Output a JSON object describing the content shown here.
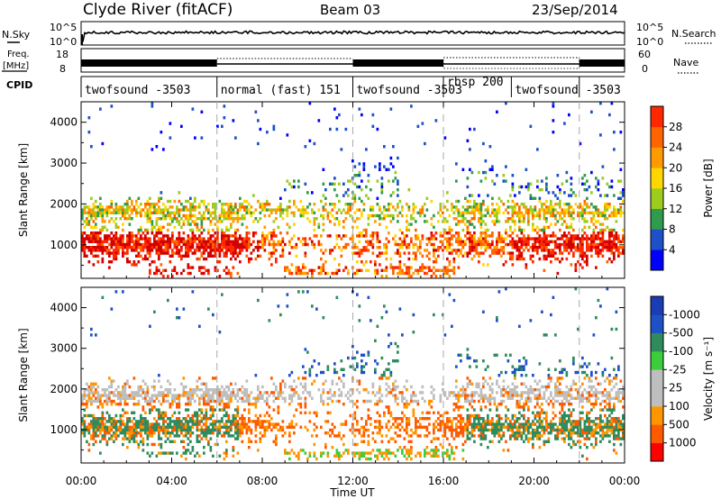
{
  "header": {
    "station": "Clyde River (fitACF)",
    "beam": "Beam 03",
    "date": "23/Sep/2014"
  },
  "top_panels": {
    "nsky_label": "N.Sky",
    "nsearch_label": "N.Search",
    "freq_label_1": "Freq.",
    "freq_label_2": "[MHz]",
    "nave_label": "Nave",
    "cpid_label": "CPID",
    "left_ticks_noise": [
      "10^5",
      "10^0"
    ],
    "right_ticks_noise": [
      "10^5",
      "10^0"
    ],
    "left_ticks_freq": [
      "18",
      "8"
    ],
    "right_ticks_nave": [
      "60",
      "0"
    ]
  },
  "cpid_segments": [
    {
      "label": "twofsound -3503",
      "start": 0,
      "end": 6
    },
    {
      "label": "normal (fast) 151",
      "start": 6,
      "end": 12
    },
    {
      "label": "twofsound -3503",
      "start": 12,
      "end": 16
    },
    {
      "label": "rbsp 200",
      "start": 16,
      "end": 19
    },
    {
      "label": "twofsound -3503",
      "start": 19,
      "end": 22
    }
  ],
  "colors": {
    "power": [
      "#0000ff",
      "#1e50c8",
      "#2e9c4c",
      "#9ccc1e",
      "#ffd700",
      "#ff9a00",
      "#ff6400",
      "#ff2800",
      "#d20000"
    ],
    "velocity": [
      "#ff0000",
      "#ff5a00",
      "#ff9600",
      "#bebebe",
      "#bebebe",
      "#3ccc3c",
      "#2e8c5c",
      "#1e50c8",
      "#1a3cb4"
    ]
  },
  "chart_data": [
    {
      "type": "heatmap",
      "title": "Power",
      "xlabel": "",
      "ylabel": "Slant Range [km]",
      "x_ticks": [
        "00:00",
        "04:00",
        "08:00",
        "12:00",
        "16:00",
        "20:00",
        "00:00"
      ],
      "y_ticks": [
        "1000",
        "2000",
        "3000",
        "4000"
      ],
      "xlim": [
        0,
        24
      ],
      "ylim": [
        180,
        4500
      ],
      "colorbar_label": "Power [dB]",
      "colorbar_ticks": [
        "4",
        "8",
        "12",
        "16",
        "20",
        "24",
        "28"
      ],
      "colorbar_range": [
        0,
        30
      ]
    },
    {
      "type": "heatmap",
      "title": "Velocity",
      "xlabel": "Time UT",
      "ylabel": "Slant Range [km]",
      "x_ticks": [
        "00:00",
        "04:00",
        "08:00",
        "12:00",
        "16:00",
        "20:00",
        "00:00"
      ],
      "y_ticks": [
        "1000",
        "2000",
        "3000",
        "4000"
      ],
      "xlim": [
        0,
        24
      ],
      "ylim": [
        180,
        4500
      ],
      "colorbar_label": "Velocity [m s⁻¹]",
      "colorbar_ticks": [
        "1000",
        "500",
        "100",
        "25",
        "-25",
        "-100",
        "-500",
        "-1000"
      ]
    }
  ],
  "vertical_dashes_hours": [
    6,
    12,
    16,
    22
  ]
}
